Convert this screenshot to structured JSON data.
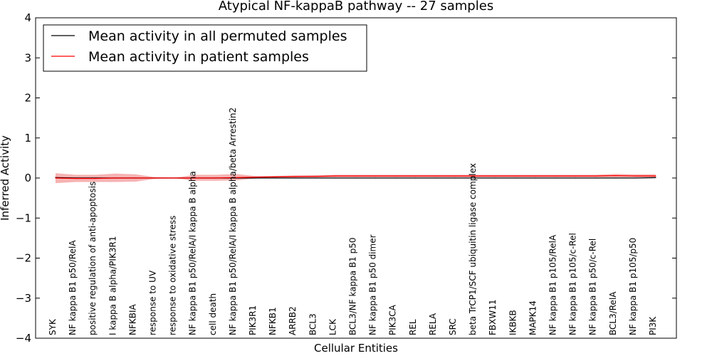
{
  "chart_data": {
    "type": "line",
    "title": "Atypical NF-kappaB pathway -- 27 samples",
    "xlabel": "Cellular Entities",
    "ylabel": "Inferred Activity",
    "ylim": [
      -4,
      4
    ],
    "yticks": [
      -4,
      -3,
      -2,
      -1,
      0,
      1,
      2,
      3,
      4
    ],
    "ytick_labels": [
      "−4",
      "−3",
      "−2",
      "−1",
      "0",
      "1",
      "2",
      "3",
      "4"
    ],
    "grid": false,
    "legend_position": "top-left",
    "categories": [
      "SYK",
      "NF kappa B1 p50/RelA",
      "positive regulation of anti-apoptosis",
      "I kappa B alpha/PIK3R1",
      "NFKBIA",
      "response to UV",
      "response to oxidative stress",
      "NF kappa B1 p50/RelA/I kappa B alpha",
      "cell death",
      "NF kappa B1 p50/RelA/I kappa B alpha/beta Arrestin2",
      "PIK3R1",
      "NFKB1",
      "ARRB2",
      "BCL3",
      "LCK",
      "BCL3/NF kappa B1 p50",
      "NF kappa B1 p50 dimer",
      "PIK3CA",
      "REL",
      "RELA",
      "SRC",
      "beta TrCP1/SCF ubiquitin ligase complex",
      "FBXW11",
      "IKBKB",
      "MAPK14",
      "NF kappa B1 p105/RelA",
      "NF kappa B1 p105/c-Rel",
      "NF kappa B1 p50/c-Rel",
      "BCL3/RelA",
      "NF kappa B1 p105/p50",
      "PI3K"
    ],
    "series": [
      {
        "name": "Mean activity in all permuted samples",
        "color": "#000000",
        "values": [
          0.01,
          0.0,
          0.0,
          0.0,
          0.0,
          0.0,
          0.0,
          0.0,
          0.0,
          0.0,
          0.0,
          0.0,
          0.0,
          0.0,
          0.0,
          0.0,
          0.0,
          0.0,
          0.0,
          0.0,
          0.0,
          0.0,
          0.0,
          0.0,
          0.0,
          0.0,
          0.0,
          0.0,
          0.0,
          0.0,
          0.01
        ],
        "band_lower": [
          -0.02,
          -0.02,
          -0.02,
          -0.02,
          -0.02,
          -0.01,
          -0.01,
          -0.02,
          -0.02,
          -0.02,
          -0.01,
          -0.01,
          -0.01,
          -0.01,
          -0.01,
          -0.01,
          -0.01,
          -0.01,
          -0.01,
          -0.01,
          -0.01,
          -0.01,
          -0.01,
          -0.01,
          -0.01,
          -0.01,
          -0.01,
          -0.01,
          -0.01,
          -0.01,
          -0.01
        ],
        "band_upper": [
          0.03,
          0.02,
          0.02,
          0.02,
          0.02,
          0.01,
          0.01,
          0.02,
          0.02,
          0.02,
          0.01,
          0.01,
          0.01,
          0.01,
          0.01,
          0.01,
          0.01,
          0.01,
          0.01,
          0.01,
          0.01,
          0.01,
          0.01,
          0.01,
          0.01,
          0.01,
          0.01,
          0.01,
          0.01,
          0.01,
          0.02
        ],
        "band_color": "#c8c8d0"
      },
      {
        "name": "Mean activity in patient samples",
        "color": "#ff0000",
        "values": [
          0.0,
          -0.01,
          -0.01,
          0.0,
          0.0,
          0.0,
          0.0,
          0.0,
          0.0,
          0.01,
          0.02,
          0.03,
          0.04,
          0.04,
          0.05,
          0.05,
          0.05,
          0.05,
          0.05,
          0.05,
          0.05,
          0.05,
          0.05,
          0.05,
          0.05,
          0.05,
          0.05,
          0.05,
          0.06,
          0.05,
          0.05
        ],
        "band_lower": [
          -0.13,
          -0.1,
          -0.1,
          -0.1,
          -0.09,
          -0.02,
          -0.01,
          -0.07,
          -0.07,
          -0.06,
          -0.01,
          0.0,
          0.01,
          0.02,
          0.02,
          0.02,
          0.02,
          0.02,
          0.02,
          0.02,
          0.02,
          0.02,
          0.02,
          0.02,
          0.02,
          0.02,
          0.02,
          0.02,
          0.02,
          0.02,
          0.02
        ],
        "band_upper": [
          0.12,
          0.08,
          0.08,
          0.11,
          0.09,
          0.02,
          0.01,
          0.08,
          0.08,
          0.1,
          0.05,
          0.05,
          0.06,
          0.07,
          0.08,
          0.08,
          0.08,
          0.08,
          0.08,
          0.08,
          0.08,
          0.08,
          0.08,
          0.08,
          0.08,
          0.08,
          0.08,
          0.08,
          0.1,
          0.09,
          0.09
        ],
        "band_color": "#f08080"
      }
    ],
    "zero_line": {
      "color": "#808080",
      "value": 0
    }
  }
}
